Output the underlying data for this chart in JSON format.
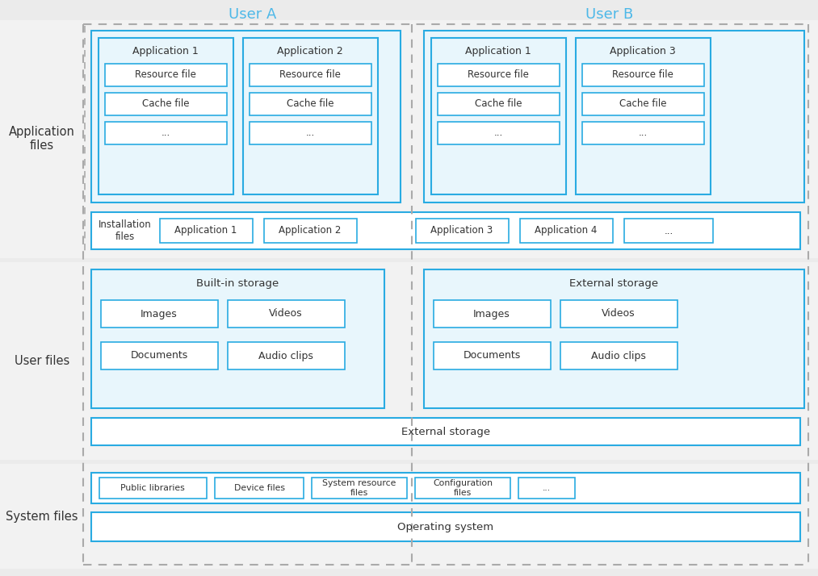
{
  "bg_color": "#ebebeb",
  "white": "#ffffff",
  "blue_border": "#29abe2",
  "blue_fill": "#e8f6fc",
  "dashed_color": "#aaaaaa",
  "text_dark": "#333333",
  "text_blue": "#4db8e8",
  "section_bg": "#f2f2f2",
  "user_a_label": "User A",
  "user_b_label": "User B",
  "app_files_label": "Application\nfiles",
  "user_files_label": "User files",
  "system_files_label": "System files"
}
